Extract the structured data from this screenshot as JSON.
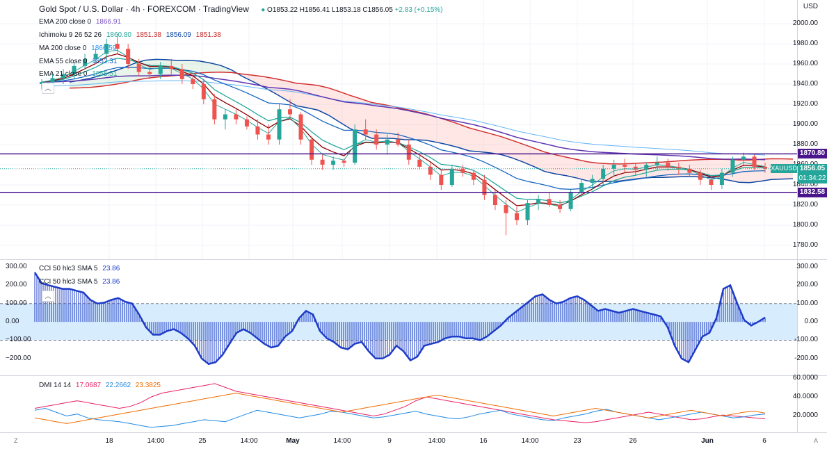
{
  "header": {
    "symbol_title": "Gold Spot / U.S. Dollar · 4h · FOREXCOM · TradingView",
    "ohlc": {
      "o": "O1853.22",
      "h": "H1856.41",
      "l": "L1853.18",
      "c": "C1856.05",
      "chg": "+2.83 (+0.15%)"
    },
    "currency": "USD"
  },
  "indicators": {
    "ema200": {
      "label": "EMA 200 close 0",
      "value": "1866.91",
      "color": "#7e57c2"
    },
    "ichimoku": {
      "label": "Ichimoku 9 26 52 26",
      "values": [
        "1860.80",
        "1851.38",
        "1856.09",
        "1851.38"
      ],
      "colors": [
        "#26a69a",
        "#c62828",
        "#0d47a1",
        "#c62828"
      ]
    },
    "ma200": {
      "label": "MA 200 close 0",
      "value": "1866.59",
      "color": "#2196f3"
    },
    "ema55": {
      "label": "EMA 55 close 0",
      "value": "1852.31",
      "color": "#1565c0"
    },
    "ema21": {
      "label": "EMA 21 close 0",
      "value": "1855.51",
      "color": "#26a69a"
    }
  },
  "price_axis": [
    "2000.00",
    "1980.00",
    "1960.00",
    "1940.00",
    "1920.00",
    "1900.00",
    "1880.00",
    "1860.00",
    "1840.00",
    "1820.00",
    "1800.00",
    "1780.00"
  ],
  "levels": {
    "resistance": {
      "value": "1870.80",
      "color": "#4a148c"
    },
    "support": {
      "value": "1832.58",
      "color": "#4a148c"
    }
  },
  "last_price": {
    "symbol": "XAUUSD",
    "value": "1856.05",
    "countdown": "01:34:22",
    "color": "#26a69a"
  },
  "cci": {
    "label1": "CCI 50 hlc3 SMA 5",
    "value1": "23.86",
    "label2": "CCI 50 hlc3 SMA 5",
    "value2": "23.86",
    "axis_right": [
      "300.00",
      "200.00",
      "100.00",
      "0.00",
      "-100.00",
      "-200.00"
    ],
    "axis_left": [
      "300.00",
      "200.00",
      "100.00",
      "0.00",
      "−100.00",
      "−200.00"
    ],
    "series": [
      270,
      210,
      200,
      190,
      180,
      180,
      170,
      160,
      120,
      100,
      105,
      120,
      130,
      110,
      100,
      40,
      -30,
      -70,
      -70,
      -50,
      -40,
      -60,
      -90,
      -130,
      -200,
      -230,
      -220,
      -180,
      -120,
      -60,
      -40,
      -60,
      -90,
      -120,
      -140,
      -130,
      -80,
      -50,
      20,
      60,
      40,
      -50,
      -90,
      -110,
      -140,
      -150,
      -120,
      -110,
      -160,
      -200,
      -200,
      -180,
      -130,
      -160,
      -210,
      -190,
      -130,
      -120,
      -110,
      -90,
      -80,
      -80,
      -90,
      -90,
      -100,
      -80,
      -50,
      -20,
      20,
      50,
      80,
      110,
      140,
      150,
      120,
      100,
      110,
      130,
      140,
      120,
      90,
      60,
      70,
      60,
      50,
      60,
      70,
      60,
      50,
      40,
      30,
      -30,
      -130,
      -200,
      -220,
      -150,
      -80,
      -60,
      20,
      180,
      200,
      100,
      10,
      -20,
      0,
      23.86
    ]
  },
  "dmi": {
    "label": "DMI 14 14",
    "values": [
      "17.0687",
      "22.2662",
      "23.3825"
    ],
    "colors": [
      "#e91e63",
      "#1e88e5",
      "#ef6c00"
    ],
    "axis_right": [
      "60.0000",
      "40.0000",
      "20.0000"
    ],
    "plus": [
      26,
      28,
      24,
      20,
      22,
      18,
      16,
      15,
      14,
      12,
      10,
      8,
      9,
      10,
      12,
      14,
      16,
      15,
      14,
      18,
      22,
      26,
      24,
      22,
      20,
      18,
      20,
      22,
      25,
      24,
      22,
      20,
      18,
      19,
      21,
      23,
      25,
      22,
      20,
      18,
      17,
      19,
      22,
      24,
      26,
      22,
      20,
      18,
      16,
      15,
      18,
      20,
      22,
      25,
      27,
      24,
      22,
      20,
      18,
      16,
      18,
      20,
      22,
      24,
      22,
      20,
      18,
      19,
      21,
      22
    ],
    "minus": [
      28,
      30,
      32,
      34,
      36,
      34,
      32,
      30,
      28,
      30,
      34,
      40,
      44,
      46,
      48,
      50,
      52,
      54,
      50,
      46,
      44,
      42,
      40,
      38,
      36,
      34,
      32,
      30,
      28,
      26,
      24,
      22,
      20,
      22,
      26,
      30,
      36,
      40,
      38,
      36,
      34,
      32,
      30,
      28,
      26,
      24,
      22,
      20,
      18,
      16,
      15,
      14,
      13,
      14,
      16,
      18,
      20,
      22,
      24,
      22,
      20,
      18,
      16,
      17,
      19,
      21,
      20,
      19,
      18,
      17
    ],
    "adx": [
      18,
      16,
      14,
      12,
      14,
      16,
      18,
      20,
      22,
      24,
      26,
      28,
      30,
      32,
      34,
      36,
      38,
      40,
      42,
      44,
      42,
      40,
      38,
      36,
      34,
      32,
      30,
      28,
      26,
      24,
      26,
      28,
      30,
      32,
      34,
      36,
      38,
      40,
      42,
      40,
      38,
      36,
      34,
      32,
      30,
      28,
      26,
      24,
      22,
      20,
      22,
      24,
      26,
      28,
      26,
      24,
      22,
      20,
      18,
      20,
      22,
      24,
      26,
      24,
      22,
      20,
      22,
      24,
      25,
      23
    ]
  },
  "time_axis": [
    "18",
    "14:00",
    "25",
    "14:00",
    "May",
    "14:00",
    "9",
    "14:00",
    "16",
    "14:00",
    "23",
    "26",
    "Jun",
    "6"
  ],
  "corner_left": "Z",
  "corner_right": "A",
  "candles": [
    [
      1940,
      1945,
      1935,
      1942
    ],
    [
      1942,
      1950,
      1938,
      1946
    ],
    [
      1946,
      1955,
      1940,
      1950
    ],
    [
      1950,
      1962,
      1945,
      1958
    ],
    [
      1958,
      1970,
      1955,
      1965
    ],
    [
      1965,
      1975,
      1960,
      1970
    ],
    [
      1970,
      1985,
      1965,
      1980
    ],
    [
      1980,
      1990,
      1970,
      1975
    ],
    [
      1975,
      1980,
      1955,
      1960
    ],
    [
      1960,
      1965,
      1948,
      1952
    ],
    [
      1952,
      1960,
      1945,
      1950
    ],
    [
      1950,
      1962,
      1945,
      1958
    ],
    [
      1958,
      1965,
      1950,
      1955
    ],
    [
      1955,
      1960,
      1940,
      1945
    ],
    [
      1945,
      1950,
      1935,
      1940
    ],
    [
      1940,
      1945,
      1920,
      1925
    ],
    [
      1925,
      1930,
      1900,
      1905
    ],
    [
      1905,
      1915,
      1895,
      1910
    ],
    [
      1910,
      1915,
      1900,
      1905
    ],
    [
      1905,
      1908,
      1895,
      1898
    ],
    [
      1898,
      1905,
      1885,
      1890
    ],
    [
      1890,
      1900,
      1880,
      1885
    ],
    [
      1885,
      1920,
      1880,
      1915
    ],
    [
      1915,
      1925,
      1905,
      1910
    ],
    [
      1910,
      1912,
      1880,
      1885
    ],
    [
      1885,
      1888,
      1860,
      1865
    ],
    [
      1865,
      1870,
      1855,
      1860
    ],
    [
      1860,
      1868,
      1855,
      1864
    ],
    [
      1864,
      1866,
      1858,
      1862
    ],
    [
      1862,
      1900,
      1860,
      1895
    ],
    [
      1895,
      1905,
      1885,
      1890
    ],
    [
      1890,
      1895,
      1875,
      1880
    ],
    [
      1880,
      1890,
      1870,
      1885
    ],
    [
      1885,
      1892,
      1878,
      1880
    ],
    [
      1880,
      1885,
      1860,
      1865
    ],
    [
      1865,
      1870,
      1855,
      1858
    ],
    [
      1858,
      1862,
      1845,
      1850
    ],
    [
      1850,
      1856,
      1835,
      1840
    ],
    [
      1840,
      1860,
      1838,
      1856
    ],
    [
      1856,
      1860,
      1848,
      1852
    ],
    [
      1852,
      1855,
      1840,
      1845
    ],
    [
      1845,
      1850,
      1825,
      1830
    ],
    [
      1830,
      1835,
      1815,
      1820
    ],
    [
      1820,
      1825,
      1790,
      1812
    ],
    [
      1812,
      1818,
      1800,
      1805
    ],
    [
      1805,
      1825,
      1800,
      1822
    ],
    [
      1822,
      1830,
      1815,
      1826
    ],
    [
      1826,
      1832,
      1818,
      1820
    ],
    [
      1820,
      1825,
      1812,
      1816
    ],
    [
      1816,
      1835,
      1814,
      1832
    ],
    [
      1832,
      1845,
      1828,
      1842
    ],
    [
      1842,
      1850,
      1835,
      1846
    ],
    [
      1846,
      1860,
      1840,
      1856
    ],
    [
      1856,
      1865,
      1848,
      1860
    ],
    [
      1860,
      1866,
      1852,
      1858
    ],
    [
      1858,
      1862,
      1850,
      1855
    ],
    [
      1855,
      1862,
      1848,
      1860
    ],
    [
      1860,
      1868,
      1855,
      1862
    ],
    [
      1862,
      1866,
      1854,
      1858
    ],
    [
      1858,
      1862,
      1850,
      1856
    ],
    [
      1856,
      1860,
      1848,
      1852
    ],
    [
      1852,
      1855,
      1840,
      1845
    ],
    [
      1845,
      1850,
      1835,
      1840
    ],
    [
      1840,
      1856,
      1836,
      1852
    ],
    [
      1852,
      1868,
      1848,
      1865
    ],
    [
      1865,
      1872,
      1860,
      1868
    ],
    [
      1868,
      1870,
      1855,
      1858
    ],
    [
      1858,
      1862,
      1852,
      1856
    ]
  ]
}
